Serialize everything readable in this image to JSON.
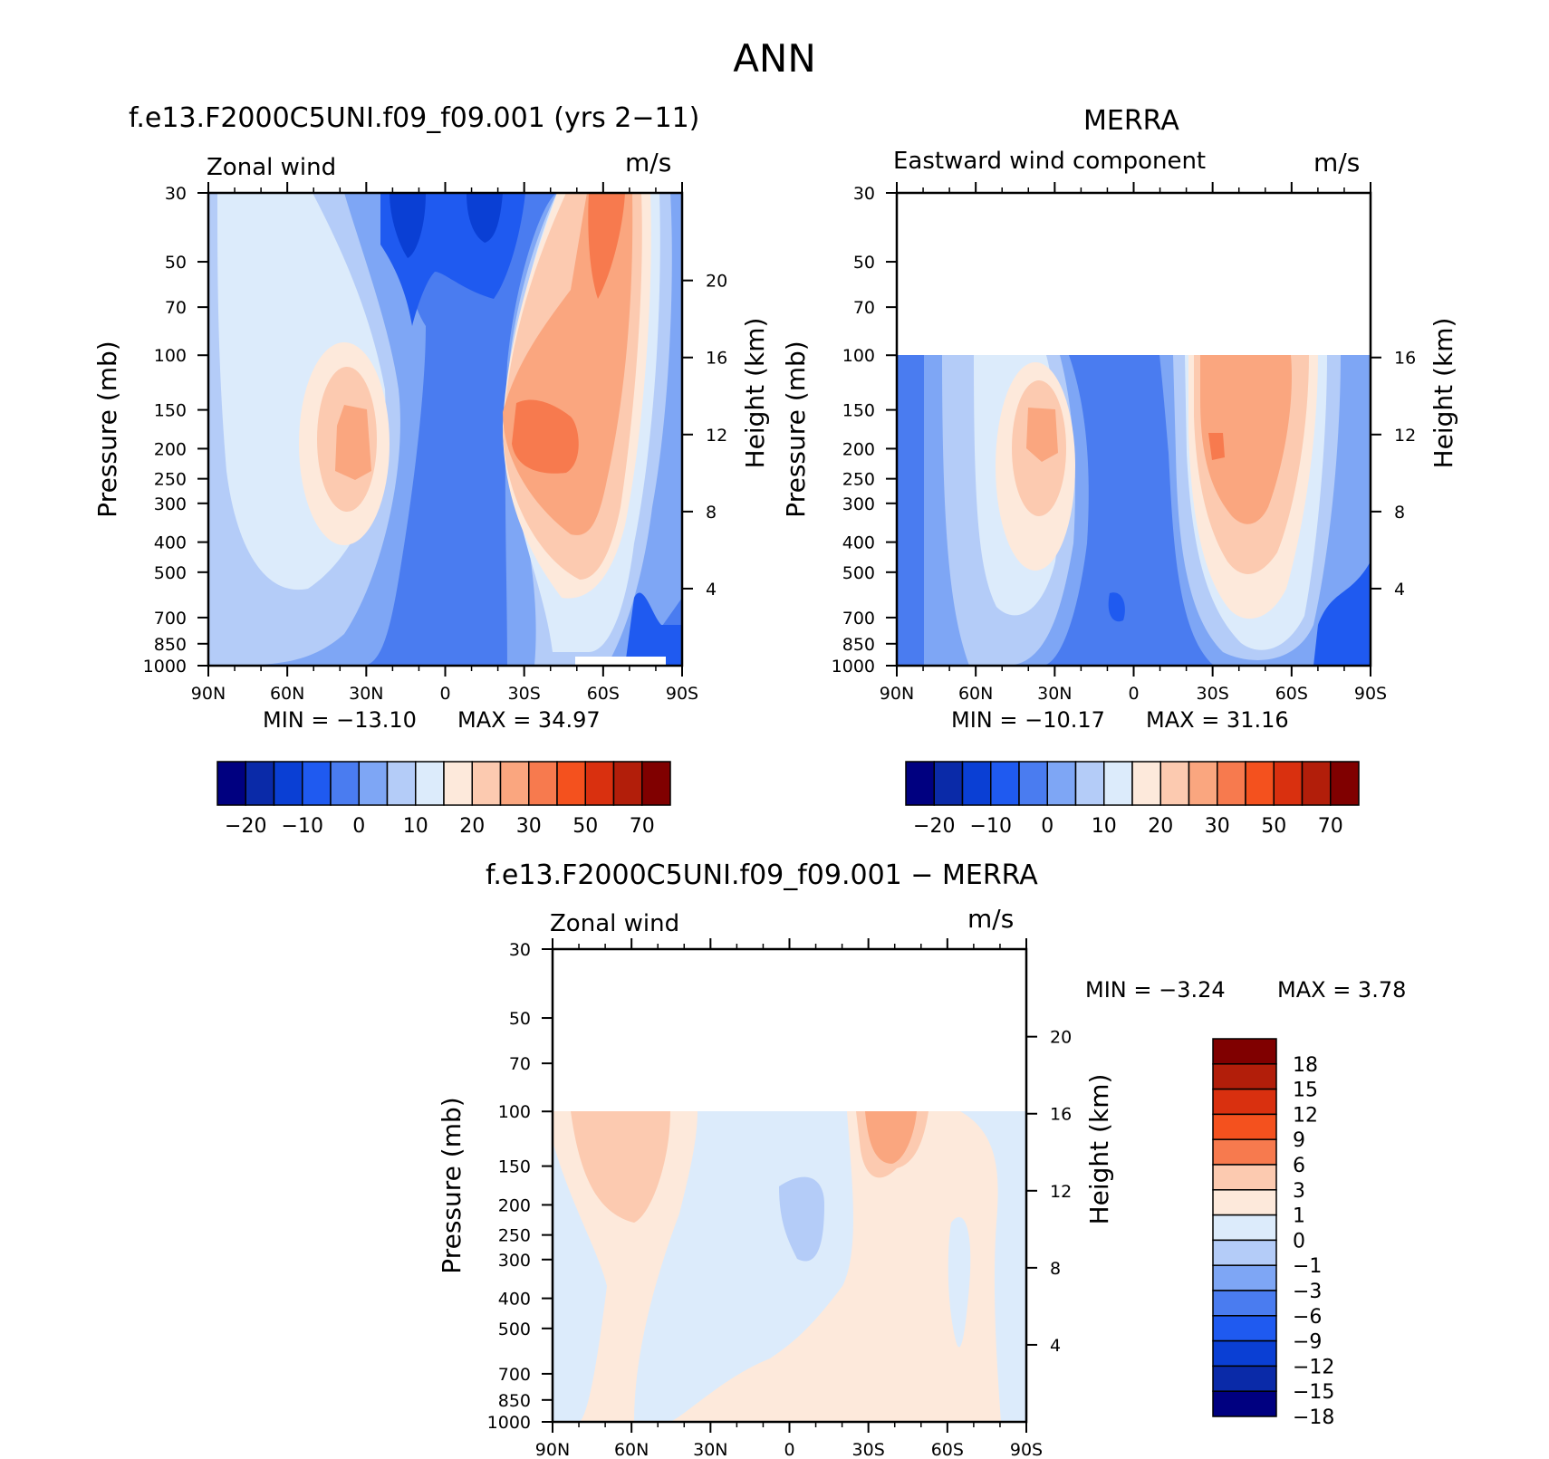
{
  "figure": {
    "title": "ANN"
  },
  "chart_data": [
    {
      "type": "heatmap",
      "title": "f.e13.F2000C5UNI.f09_f09.001 (yrs 2−11)",
      "variable": "Zonal wind",
      "units": "m/s",
      "ylabel": "Pressure (mb)",
      "ylabel_right": "Height (km)",
      "x_ticks": [
        "90N",
        "60N",
        "30N",
        "0",
        "30S",
        "60S",
        "90S"
      ],
      "y_ticks": [
        "30",
        "50",
        "70",
        "100",
        "150",
        "200",
        "250",
        "300",
        "400",
        "500",
        "700",
        "850",
        "1000"
      ],
      "height_ticks": [
        "20",
        "16",
        "12",
        "8",
        "4"
      ],
      "min_label": "MIN = −13.10",
      "max_label": "MAX =   34.97",
      "colorbar": {
        "colors": [
          "#000080",
          "#0a2aa8",
          "#0a3fd4",
          "#1f5af0",
          "#4a7cf0",
          "#7ea6f5",
          "#b4ccf8",
          "#dcebfb",
          "#fde9db",
          "#fccab0",
          "#faa67f",
          "#f77a4e",
          "#f4511e",
          "#d9300f",
          "#b21e0a",
          "#800000"
        ],
        "labels": [
          "−20",
          "−10",
          "0",
          "10",
          "20",
          "30",
          "50",
          "70"
        ]
      }
    },
    {
      "type": "heatmap",
      "title": "MERRA",
      "variable": "Eastward wind component",
      "units": "m/s",
      "ylabel": "Pressure (mb)",
      "ylabel_right": "Height (km)",
      "x_ticks": [
        "90N",
        "60N",
        "30N",
        "0",
        "30S",
        "60S",
        "90S"
      ],
      "y_ticks": [
        "30",
        "50",
        "70",
        "100",
        "150",
        "200",
        "250",
        "300",
        "400",
        "500",
        "700",
        "850",
        "1000"
      ],
      "height_ticks": [
        "16",
        "12",
        "8",
        "4"
      ],
      "min_label": "MIN = −10.17",
      "max_label": "MAX =   31.16",
      "colorbar": {
        "colors": [
          "#000080",
          "#0a2aa8",
          "#0a3fd4",
          "#1f5af0",
          "#4a7cf0",
          "#7ea6f5",
          "#b4ccf8",
          "#dcebfb",
          "#fde9db",
          "#fccab0",
          "#faa67f",
          "#f77a4e",
          "#f4511e",
          "#d9300f",
          "#b21e0a",
          "#800000"
        ],
        "labels": [
          "−20",
          "−10",
          "0",
          "10",
          "20",
          "30",
          "50",
          "70"
        ]
      }
    },
    {
      "type": "heatmap",
      "title": "f.e13.F2000C5UNI.f09_f09.001 − MERRA",
      "variable": "Zonal wind",
      "units": "m/s",
      "ylabel": "Pressure (mb)",
      "ylabel_right": "Height (km)",
      "x_ticks": [
        "90N",
        "60N",
        "30N",
        "0",
        "30S",
        "60S",
        "90S"
      ],
      "y_ticks": [
        "30",
        "50",
        "70",
        "100",
        "150",
        "200",
        "250",
        "300",
        "400",
        "500",
        "700",
        "850",
        "1000"
      ],
      "height_ticks": [
        "20",
        "16",
        "12",
        "8",
        "4"
      ],
      "min_label": "MIN =    −3.24",
      "max_label": "MAX =     3.78",
      "colorbar": {
        "colors": [
          "#800000",
          "#b21e0a",
          "#d9300f",
          "#f4511e",
          "#f77a4e",
          "#fccab0",
          "#fde9db",
          "#dcebfb",
          "#b4ccf8",
          "#7ea6f5",
          "#4a7cf0",
          "#1f5af0",
          "#0a3fd4",
          "#0a2aa8",
          "#000080"
        ],
        "labels": [
          "18",
          "15",
          "12",
          "9",
          "6",
          "3",
          "1",
          "0",
          "−1",
          "−3",
          "−6",
          "−9",
          "−12",
          "−15",
          "−18"
        ]
      }
    }
  ]
}
